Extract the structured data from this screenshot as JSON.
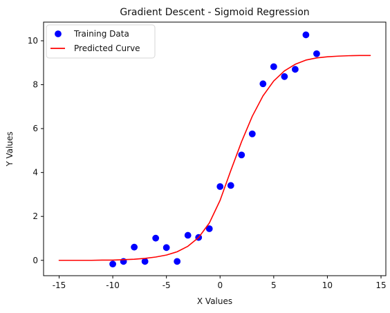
{
  "chart_data": {
    "type": "scatter",
    "title": "Gradient Descent - Sigmoid Regression",
    "xlabel": "X Values",
    "ylabel": "Y Values",
    "xlim": [
      -16.45,
      15.45
    ],
    "ylim": [
      -0.7,
      10.85
    ],
    "xticks": [
      -15,
      -10,
      -5,
      0,
      5,
      10,
      15
    ],
    "yticks": [
      0,
      2,
      4,
      6,
      8,
      10
    ],
    "grid": false,
    "legend_position": "top-left",
    "series": [
      {
        "name": "Training Data",
        "kind": "scatter",
        "color": "#0000ff",
        "x": [
          -10,
          -9,
          -8,
          -7,
          -6,
          -5,
          -4,
          -3,
          -2,
          -1,
          0,
          1,
          2,
          3,
          4,
          5,
          6,
          7,
          8,
          9
        ],
        "y": [
          -0.17,
          -0.05,
          0.6,
          -0.05,
          1.01,
          0.58,
          -0.05,
          1.14,
          1.04,
          1.44,
          3.36,
          3.41,
          4.8,
          5.76,
          8.04,
          8.82,
          8.37,
          8.7,
          10.27,
          9.41
        ]
      },
      {
        "name": "Predicted Curve",
        "kind": "line",
        "color": "#ff0000",
        "x": [
          -15,
          -14,
          -13,
          -12,
          -11,
          -10,
          -9,
          -8,
          -7,
          -6,
          -5,
          -4,
          -3,
          -2,
          -1,
          0,
          1,
          2,
          3,
          4,
          5,
          6,
          7,
          8,
          9,
          10,
          11,
          12,
          13,
          14
        ],
        "y": [
          0.0,
          0.0,
          0.0,
          0.0,
          0.01,
          0.01,
          0.03,
          0.05,
          0.09,
          0.15,
          0.24,
          0.39,
          0.64,
          1.04,
          1.7,
          2.73,
          4.09,
          5.4,
          6.56,
          7.49,
          8.17,
          8.63,
          8.93,
          9.12,
          9.22,
          9.27,
          9.3,
          9.32,
          9.33,
          9.33
        ]
      }
    ]
  }
}
